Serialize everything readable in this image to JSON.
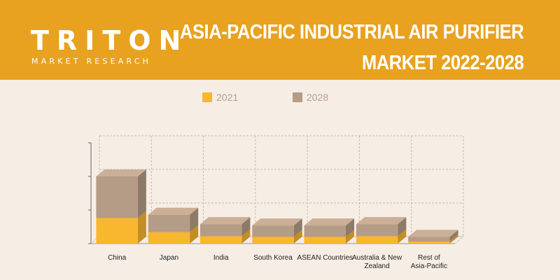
{
  "header": {
    "brand_word": "TRITON",
    "brand_tagline": "MARKET RESEARCH",
    "title_line1": "ASIA-PACIFIC INDUSTRIAL AIR PURIFIER",
    "title_line2": "MARKET 2022-2028",
    "banner_color": "#e8a21f"
  },
  "chart_data": {
    "type": "bar",
    "stacked": true,
    "three_d": true,
    "categories": [
      "China",
      "Japan",
      "India",
      "South Korea",
      "ASEAN Countries",
      "Australia & New Zealand",
      "Rest of Asia-Pacific"
    ],
    "series": [
      {
        "name": "2021",
        "color": "#f9b62f",
        "values": [
          38,
          17,
          11,
          10,
          10,
          11,
          3
        ]
      },
      {
        "name": "2028",
        "color": "#b59c86",
        "values": [
          62,
          26,
          18,
          17,
          17,
          18,
          7
        ]
      }
    ],
    "ylim": [
      0,
      150
    ],
    "grid": true,
    "legend_position": "top-center",
    "xlabel": "",
    "ylabel": ""
  }
}
